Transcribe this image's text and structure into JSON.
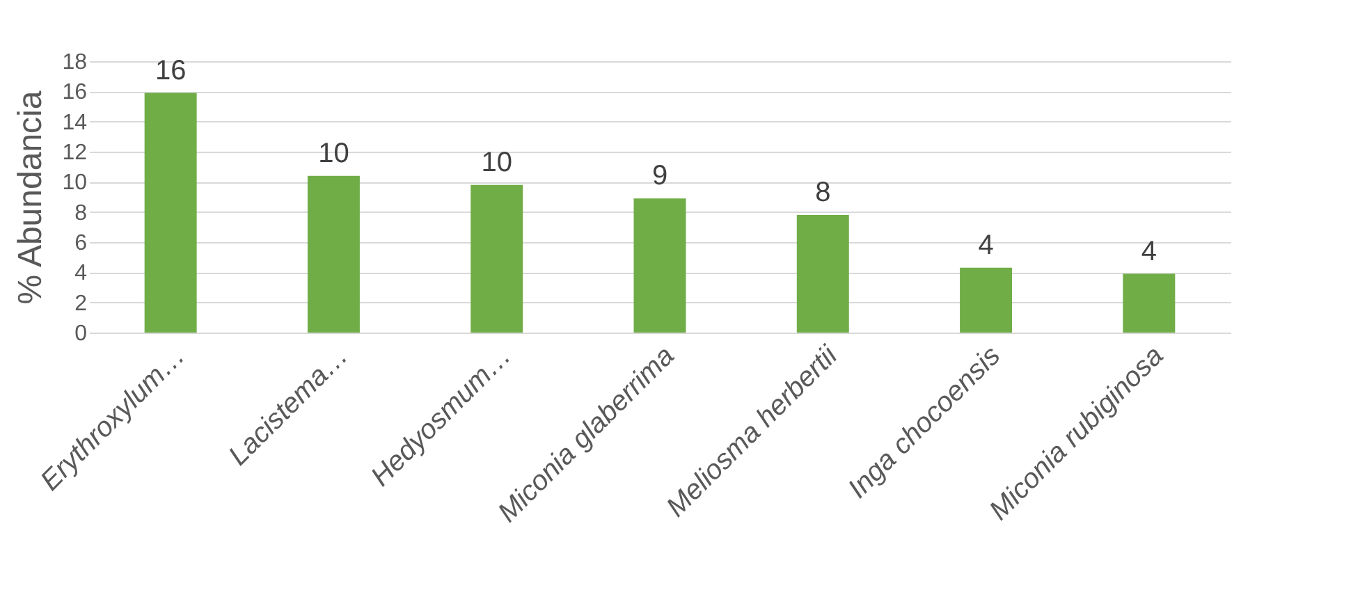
{
  "chart_data": {
    "type": "bar",
    "ylabel": "% Abundancia",
    "categories": [
      "Erythroxylum…",
      "Lacistema…",
      "Hedyosmum…",
      "Miconia glaberrima",
      "Meliosma herbertii",
      "Inga chocoensis",
      "Miconia rubiginosa"
    ],
    "values": [
      15.9,
      10.4,
      9.8,
      8.9,
      7.8,
      4.3,
      3.9
    ],
    "value_labels": [
      "16",
      "10",
      "10",
      "9",
      "8",
      "4",
      "4"
    ],
    "color": "#70ad47",
    "ylim": [
      0,
      18
    ],
    "yticks": [
      0,
      2,
      4,
      6,
      8,
      10,
      12,
      14,
      16,
      18
    ],
    "grid": "y"
  }
}
